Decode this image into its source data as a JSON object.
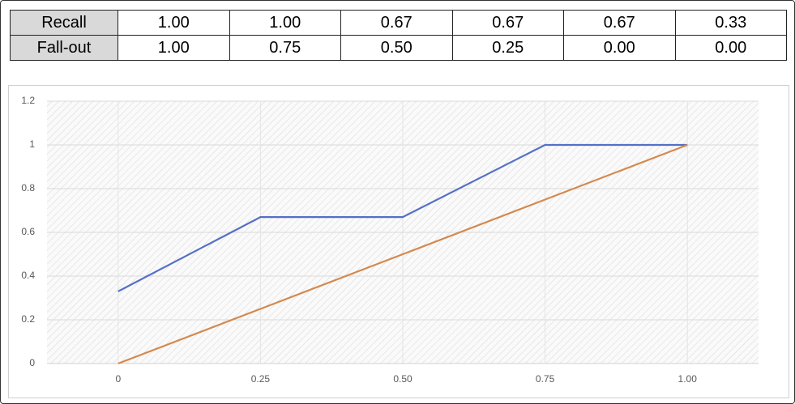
{
  "table": {
    "rows": [
      [
        "Recall",
        "1.00",
        "1.00",
        "0.67",
        "0.67",
        "0.67",
        "0.33"
      ],
      [
        "Fall-out",
        "1.00",
        "0.75",
        "0.50",
        "0.25",
        "0.00",
        "0.00"
      ]
    ]
  },
  "chart_data": {
    "type": "line",
    "x": [
      0,
      0.25,
      0.5,
      0.75,
      1
    ],
    "series": [
      {
        "color": "#5470c6",
        "values": [
          0.33,
          0.67,
          0.67,
          1,
          1
        ]
      },
      {
        "color": "#d4894f",
        "values": [
          0,
          0.25,
          0.5,
          0.75,
          1
        ]
      }
    ],
    "xlim": [
      -0.125,
      1.125
    ],
    "xticks": [
      0,
      0.25,
      {
        "value": 0.5,
        "label": "0.50"
      },
      0.75,
      {
        "value": 1,
        "label": "1.00"
      }
    ],
    "ylim": [
      0,
      1.2
    ],
    "yticks": [
      0,
      0.2,
      0.4,
      0.6,
      0.8,
      1,
      1.2
    ],
    "grid": true
  }
}
